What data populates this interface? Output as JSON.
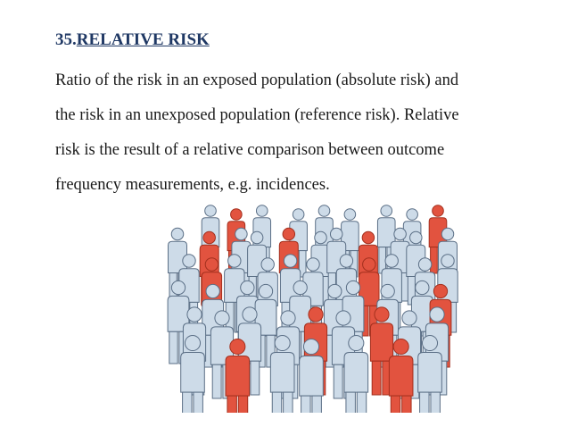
{
  "heading": {
    "number": "35.",
    "title": "RELATIVE RISK"
  },
  "paragraph_lines": [
    "Ratio of the risk in an exposed population (absolute risk) and",
    "the risk in an unexposed population (reference risk). Relative",
    "risk is the result of a relative comparison between outcome",
    "frequency measurements, e.g. incidences."
  ]
}
